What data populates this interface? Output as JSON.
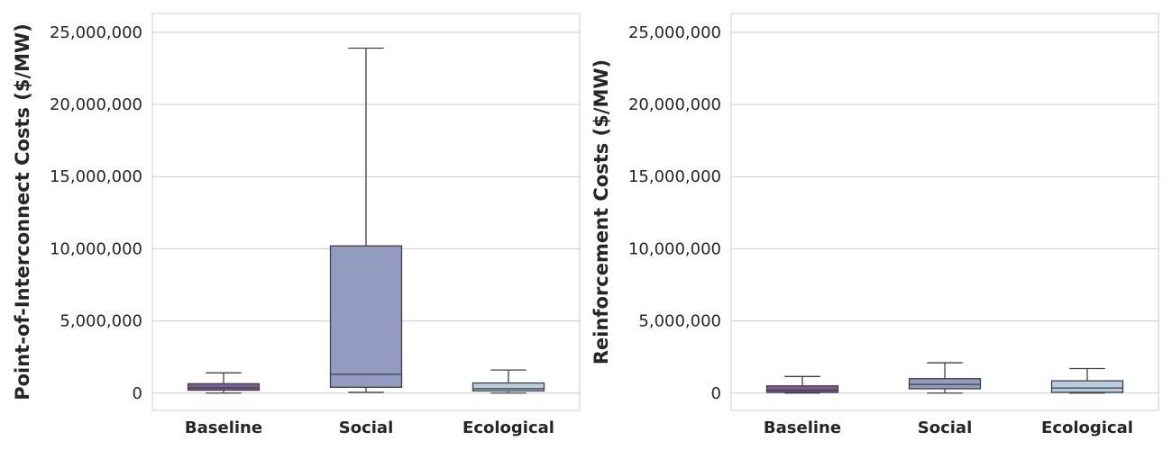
{
  "chart_data": [
    {
      "type": "box",
      "ylabel": "Point-of-Interconnect Costs ($/MW)",
      "categories": [
        "Baseline",
        "Social",
        "Ecological"
      ],
      "yticks": [
        "0",
        "5,000,000",
        "10,000,000",
        "15,000,000",
        "20,000,000",
        "25,000,000"
      ],
      "ylim": [
        -1200000,
        26300000
      ],
      "grid": true,
      "boxes": [
        {
          "category": "Baseline",
          "whisker_low": 0,
          "q1": 200000,
          "median": 350000,
          "q3": 650000,
          "whisker_high": 1400000,
          "color": "#7e5996"
        },
        {
          "category": "Social",
          "whisker_low": 50000,
          "q1": 400000,
          "median": 1300000,
          "q3": 10200000,
          "whisker_high": 23900000,
          "color": "#939bc1"
        },
        {
          "category": "Ecological",
          "whisker_low": 0,
          "q1": 150000,
          "median": 300000,
          "q3": 700000,
          "whisker_high": 1600000,
          "color": "#b9cde0"
        }
      ]
    },
    {
      "type": "box",
      "ylabel": "Reinforcement Costs ($/MW)",
      "categories": [
        "Baseline",
        "Social",
        "Ecological"
      ],
      "yticks": [
        "0",
        "5,000,000",
        "10,000,000",
        "15,000,000",
        "20,000,000",
        "25,000,000"
      ],
      "ylim": [
        -1200000,
        26300000
      ],
      "grid": true,
      "boxes": [
        {
          "category": "Baseline",
          "whisker_low": 0,
          "q1": 50000,
          "median": 200000,
          "q3": 500000,
          "whisker_high": 1150000,
          "color": "#7e5996"
        },
        {
          "category": "Social",
          "whisker_low": 0,
          "q1": 300000,
          "median": 600000,
          "q3": 1000000,
          "whisker_high": 2100000,
          "color": "#939bc1"
        },
        {
          "category": "Ecological",
          "whisker_low": 0,
          "q1": 50000,
          "median": 350000,
          "q3": 850000,
          "whisker_high": 1700000,
          "color": "#b9cde0"
        }
      ]
    }
  ]
}
